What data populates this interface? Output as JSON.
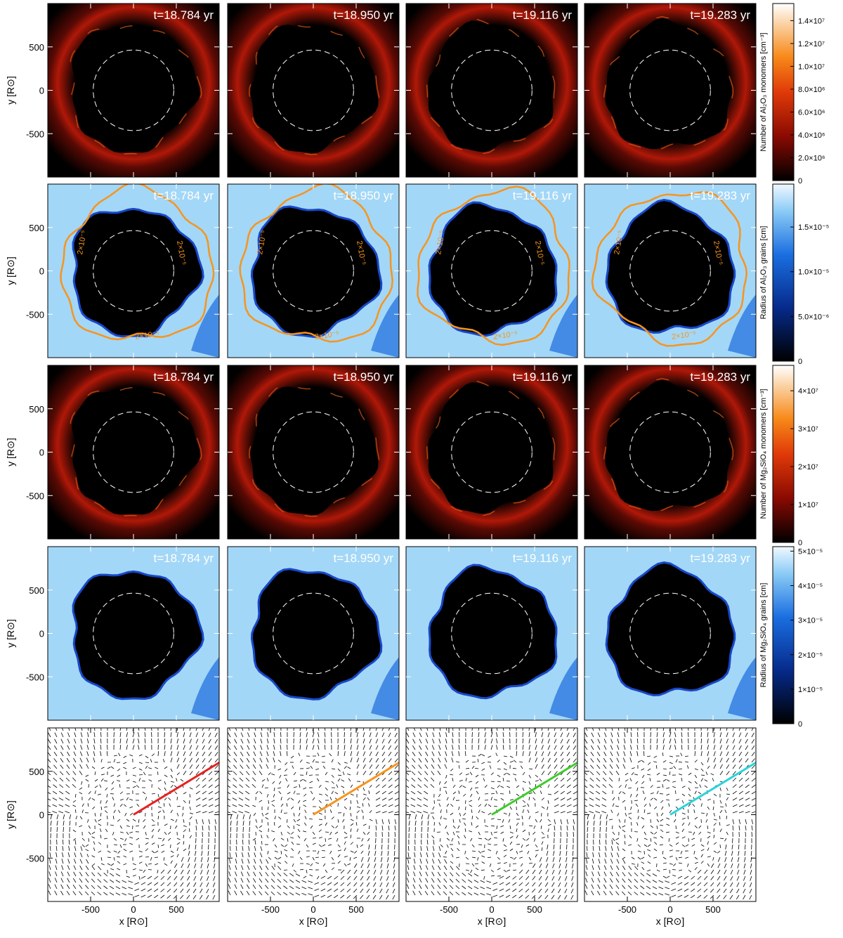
{
  "figure": {
    "times": [
      "t=18.784 yr",
      "t=18.950 yr",
      "t=19.116 yr",
      "t=19.283 yr"
    ],
    "x_axis": {
      "label": "x [R⊙]",
      "lim": [
        -1000,
        1000
      ],
      "ticks": [
        -500,
        0,
        500
      ]
    },
    "y_axis": {
      "label": "y [R⊙]",
      "lim": [
        -1000,
        1000
      ],
      "ticks": [
        -500,
        0,
        500
      ]
    },
    "contour_label": "2×10⁻⁵",
    "ray_colors": [
      "#e8201e",
      "#f7941d",
      "#3ccc2a",
      "#2ad4d8"
    ],
    "rows": [
      {
        "kind": "monomers",
        "colorbar": {
          "label": "Number of Al₂O₃ monomers [cm⁻³]",
          "lim": [
            0,
            15500000
          ],
          "ticks": [
            0,
            {
              "value": 2000000,
              "label": "2.0×10⁶"
            },
            {
              "value": 4000000,
              "label": "4.0×10⁶"
            },
            {
              "value": 6000000,
              "label": "6.0×10⁶"
            },
            {
              "value": 8000000,
              "label": "8.0×10⁶"
            },
            {
              "value": 10000000,
              "label": "1.0×10⁷"
            },
            {
              "value": 12000000,
              "label": "1.2×10⁷"
            },
            {
              "value": 14000000,
              "label": "1.4×10⁷"
            }
          ]
        }
      },
      {
        "kind": "radius-contour",
        "colorbar": {
          "label": "Radius of Al₂O₃ grains [cm]",
          "lim": [
            0,
            1.98e-05
          ],
          "ticks": [
            0,
            {
              "value": 5e-06,
              "label": "5.0×10⁻⁶"
            },
            {
              "value": 1e-05,
              "label": "1.0×10⁻⁵"
            },
            {
              "value": 1.5e-05,
              "label": "1.5×10⁻⁵"
            }
          ]
        }
      },
      {
        "kind": "monomers",
        "colorbar": {
          "label": "Number of Mg₂SiO₄ monomers [cm⁻³]",
          "lim": [
            0,
            46700000
          ],
          "ticks": [
            0,
            {
              "value": 10000000,
              "label": "1×10⁷"
            },
            {
              "value": 20000000,
              "label": "2×10⁷"
            },
            {
              "value": 30000000,
              "label": "3×10⁷"
            },
            {
              "value": 40000000,
              "label": "4×10⁷"
            }
          ]
        }
      },
      {
        "kind": "radius",
        "colorbar": {
          "label": "Radius of Mg₂SiO₄ grains [cm]",
          "lim": [
            0,
            5.13e-05
          ],
          "ticks": [
            0,
            {
              "value": 1e-05,
              "label": "1×10⁻⁵"
            },
            {
              "value": 2e-05,
              "label": "2×10⁻⁵"
            },
            {
              "value": 3e-05,
              "label": "3×10⁻⁵"
            },
            {
              "value": 4e-05,
              "label": "4×10⁻⁵"
            },
            {
              "value": 5e-05,
              "label": "5×10⁻⁵"
            }
          ]
        }
      },
      {
        "kind": "velocity"
      }
    ]
  }
}
